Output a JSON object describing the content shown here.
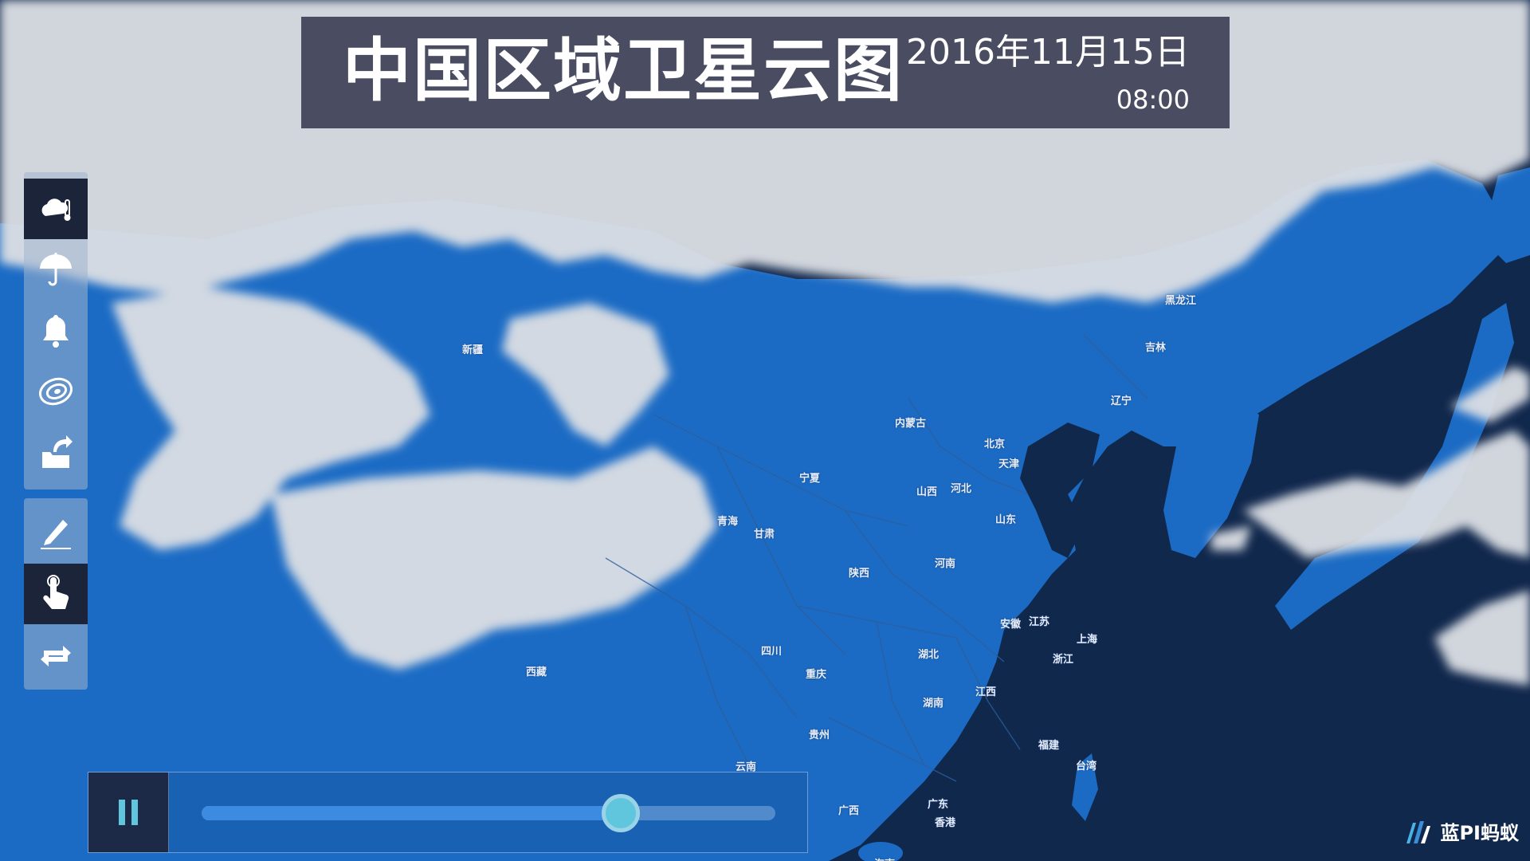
{
  "title": {
    "main": "中国区域卫星云图",
    "date": "2016年11月15日",
    "time": "08:00"
  },
  "colors": {
    "land": "#1b6bc4",
    "sea": "#11284d",
    "cloud": "#dcdfe4",
    "banner": "#3e4056",
    "thumb": "#5fc6dd"
  },
  "toolbar": {
    "tools": [
      {
        "icon": "cloud-thermometer-icon",
        "active": true
      },
      {
        "icon": "umbrella-icon",
        "active": false
      },
      {
        "icon": "bell-icon",
        "active": false
      },
      {
        "icon": "contour-icon",
        "active": false
      },
      {
        "icon": "export-folder-icon",
        "active": false
      },
      {
        "icon": "pen-icon",
        "active": false
      },
      {
        "icon": "hand-pointer-icon",
        "active": true
      },
      {
        "icon": "repeat-icon",
        "active": false
      }
    ]
  },
  "timeline": {
    "state_icon": "pause-icon",
    "progress": 0.73
  },
  "provinces": [
    "新疆",
    "西藏",
    "青海",
    "甘肃",
    "宁夏",
    "内蒙古",
    "黑龙江",
    "吉林",
    "辽宁",
    "北京",
    "天津",
    "河北",
    "山西",
    "山东",
    "河南",
    "陕西",
    "四川",
    "重庆",
    "湖北",
    "安徽",
    "江苏",
    "上海",
    "浙江",
    "江西",
    "湖南",
    "贵州",
    "云南",
    "广西",
    "广东",
    "福建",
    "台湾",
    "香港",
    "海南"
  ],
  "brand": {
    "icon": "brand-logo-icon",
    "text": "蓝PI蚂蚁"
  }
}
